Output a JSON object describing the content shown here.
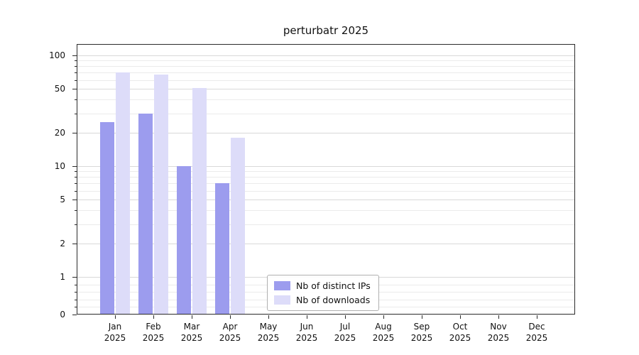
{
  "chart_data": {
    "type": "bar",
    "title": "perturbatr 2025",
    "categories": [
      "Jan 2025",
      "Feb 2025",
      "Mar 2025",
      "Apr 2025",
      "May 2025",
      "Jun 2025",
      "Jul 2025",
      "Aug 2025",
      "Sep 2025",
      "Oct 2025",
      "Nov 2025",
      "Dec 2025"
    ],
    "series": [
      {
        "name": "Nb of distinct IPs",
        "color": "#9c9cee",
        "values": [
          25,
          30,
          10,
          7,
          0,
          0,
          0,
          0,
          0,
          0,
          0,
          0
        ]
      },
      {
        "name": "Nb of downloads",
        "color": "#dddcf9",
        "values": [
          70,
          67,
          51,
          18,
          0,
          0,
          0,
          0,
          0,
          0,
          0,
          0
        ]
      }
    ],
    "yscale": "symlog",
    "ylim": [
      0,
      100
    ],
    "yticks": [
      0,
      1,
      2,
      5,
      10,
      20,
      50,
      100
    ],
    "yticks_minor": [
      0.2,
      0.4,
      0.6,
      0.8,
      3,
      4,
      6,
      7,
      8,
      9,
      30,
      40,
      60,
      70,
      80,
      90
    ],
    "grid": "horizontal",
    "legend_position": "lower-center-inside"
  }
}
